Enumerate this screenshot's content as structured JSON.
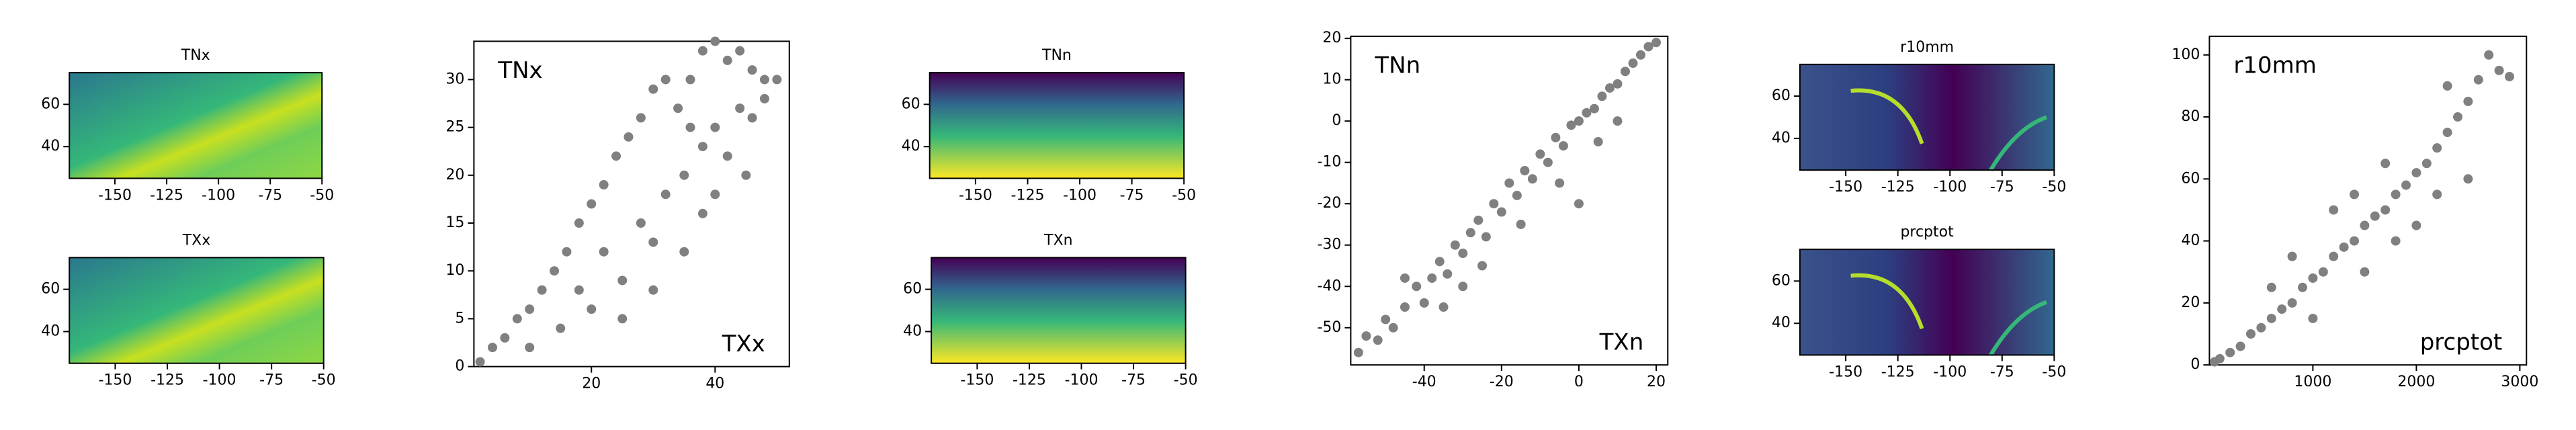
{
  "chart_data": [
    {
      "type": "map",
      "title": "TNx",
      "xlim": [
        -172,
        -50
      ],
      "ylim": [
        25,
        75
      ],
      "xticks": [
        -150,
        -125,
        -100,
        -75,
        -50
      ],
      "yticks": [
        40,
        60
      ]
    },
    {
      "type": "map",
      "title": "TXx",
      "xlim": [
        -172,
        -50
      ],
      "ylim": [
        25,
        75
      ],
      "xticks": [
        -150,
        -125,
        -100,
        -75,
        -50
      ],
      "yticks": [
        40,
        60
      ]
    },
    {
      "type": "scatter",
      "annotations": [
        "TNx",
        "TXx"
      ],
      "color": "#808080",
      "x": [
        2,
        4,
        6,
        8,
        10,
        12,
        14,
        16,
        18,
        20,
        22,
        24,
        26,
        28,
        30,
        32,
        34,
        36,
        38,
        40,
        42,
        44,
        46,
        48,
        50,
        10,
        15,
        20,
        25,
        30,
        32,
        35,
        38,
        40,
        42,
        44,
        46,
        35,
        38,
        40,
        30,
        25,
        45,
        48,
        36,
        28,
        22,
        18
      ],
      "y": [
        0.5,
        2,
        3,
        5,
        6,
        8,
        10,
        12,
        15,
        17,
        19,
        22,
        24,
        26,
        29,
        30,
        27,
        30,
        33,
        34,
        32,
        33,
        31,
        30,
        30,
        2,
        4,
        6,
        9,
        13,
        18,
        20,
        23,
        25,
        22,
        27,
        26,
        12,
        16,
        18,
        8,
        5,
        20,
        28,
        25,
        15,
        12,
        8
      ],
      "xlim": [
        1,
        52
      ],
      "ylim": [
        0,
        34
      ],
      "xticks": [
        20,
        40
      ],
      "yticks": [
        0,
        5,
        10,
        15,
        20,
        25,
        30
      ]
    },
    {
      "type": "map",
      "title": "TNn",
      "xlim": [
        -172,
        -50
      ],
      "ylim": [
        25,
        75
      ],
      "xticks": [
        -150,
        -125,
        -100,
        -75,
        -50
      ],
      "yticks": [
        40,
        60
      ]
    },
    {
      "type": "map",
      "title": "TXn",
      "xlim": [
        -172,
        -50
      ],
      "ylim": [
        25,
        75
      ],
      "xticks": [
        -150,
        -125,
        -100,
        -75,
        -50
      ],
      "yticks": [
        40,
        60
      ]
    },
    {
      "type": "scatter",
      "annotations": [
        "TNn",
        "TXn"
      ],
      "color": "#808080",
      "x": [
        -57,
        -55,
        -52,
        -50,
        -48,
        -45,
        -42,
        -40,
        -38,
        -36,
        -34,
        -32,
        -30,
        -28,
        -26,
        -24,
        -22,
        -20,
        -18,
        -16,
        -14,
        -12,
        -10,
        -8,
        -6,
        -4,
        -2,
        0,
        2,
        4,
        6,
        8,
        10,
        12,
        14,
        16,
        18,
        20,
        -25,
        -15,
        -5,
        5,
        10,
        -35,
        -45,
        0,
        -30
      ],
      "y": [
        -56,
        -52,
        -53,
        -48,
        -50,
        -45,
        -40,
        -44,
        -38,
        -34,
        -37,
        -30,
        -32,
        -27,
        -24,
        -28,
        -20,
        -22,
        -15,
        -18,
        -12,
        -14,
        -8,
        -10,
        -4,
        -6,
        -1,
        0,
        2,
        3,
        6,
        8,
        9,
        12,
        14,
        16,
        18,
        19,
        -35,
        -25,
        -15,
        -5,
        0,
        -45,
        -38,
        -20,
        -40
      ],
      "xlim": [
        -59,
        23
      ],
      "ylim": [
        -59,
        20.5
      ],
      "xticks": [
        -40,
        -20,
        0,
        20
      ],
      "yticks": [
        -50,
        -40,
        -30,
        -20,
        -10,
        0,
        10,
        20
      ]
    },
    {
      "type": "map",
      "title": "r10mm",
      "xlim": [
        -172,
        -50
      ],
      "ylim": [
        25,
        75
      ],
      "xticks": [
        -150,
        -125,
        -100,
        -75,
        -50
      ],
      "yticks": [
        40,
        60
      ]
    },
    {
      "type": "map",
      "title": "prcptot",
      "xlim": [
        -172,
        -50
      ],
      "ylim": [
        25,
        75
      ],
      "xticks": [
        -150,
        -125,
        -100,
        -75,
        -50
      ],
      "yticks": [
        40,
        60
      ]
    },
    {
      "type": "scatter",
      "annotations": [
        "r10mm",
        "prcptot"
      ],
      "color": "#808080",
      "x": [
        50,
        100,
        200,
        300,
        400,
        500,
        600,
        700,
        800,
        900,
        1000,
        1100,
        1200,
        1300,
        1400,
        1500,
        1600,
        1700,
        1800,
        1900,
        2000,
        2100,
        2200,
        2300,
        2400,
        2500,
        2600,
        2700,
        2800,
        2900,
        600,
        800,
        1000,
        1200,
        1500,
        1800,
        2000,
        2200,
        2500,
        1400,
        2300,
        1700
      ],
      "y": [
        1,
        2,
        4,
        6,
        10,
        12,
        15,
        18,
        20,
        25,
        28,
        30,
        35,
        38,
        40,
        45,
        48,
        50,
        55,
        58,
        62,
        65,
        70,
        75,
        80,
        85,
        92,
        100,
        95,
        93,
        25,
        35,
        15,
        50,
        30,
        40,
        45,
        55,
        60,
        55,
        90,
        65
      ],
      "xlim": [
        0,
        3064
      ],
      "ylim": [
        0,
        106
      ],
      "xticks": [
        1000,
        2000,
        3000
      ],
      "yticks": [
        0,
        20,
        40,
        60,
        80,
        100
      ]
    }
  ]
}
